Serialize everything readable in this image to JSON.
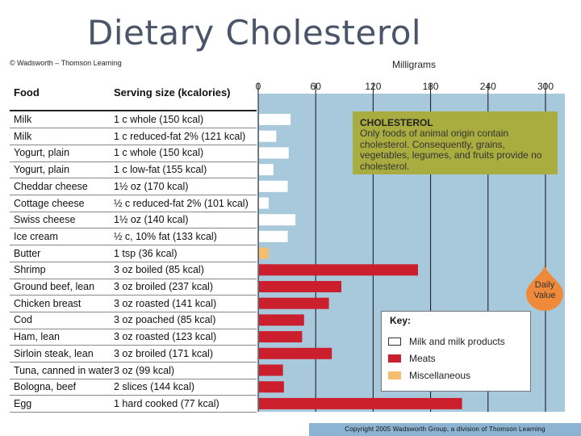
{
  "slide": {
    "title": "Dietary Cholesterol",
    "publisher_credit": "© Wadsworth – Thomson Learning",
    "copyright": "Copyright 2005 Wadsworth Group, a division of Thomson Learning"
  },
  "table": {
    "food_header": "Food",
    "serving_header": "Serving size (kcalories)",
    "rows": [
      {
        "food": "Milk",
        "serving": "1 c whole (150 kcal)"
      },
      {
        "food": "Milk",
        "serving": "1 c reduced-fat 2% (121 kcal)"
      },
      {
        "food": "Yogurt, plain",
        "serving": "1 c whole (150 kcal)"
      },
      {
        "food": "Yogurt, plain",
        "serving": "1 c low-fat (155 kcal)"
      },
      {
        "food": "Cheddar cheese",
        "serving": "1½ oz (170 kcal)"
      },
      {
        "food": "Cottage cheese",
        "serving": "½ c reduced-fat 2% (101 kcal)"
      },
      {
        "food": "Swiss cheese",
        "serving": "1½ oz (140 kcal)"
      },
      {
        "food": "Ice cream",
        "serving": "½ c, 10% fat (133 kcal)"
      },
      {
        "food": "Butter",
        "serving": "1 tsp (36 kcal)"
      },
      {
        "food": "Shrimp",
        "serving": "3 oz boiled (85 kcal)"
      },
      {
        "food": "Ground beef, lean",
        "serving": "3 oz broiled (237 kcal)"
      },
      {
        "food": "Chicken breast",
        "serving": "3 oz roasted (141 kcal)"
      },
      {
        "food": "Cod",
        "serving": "3 oz poached (85 kcal)"
      },
      {
        "food": "Ham, lean",
        "serving": "3 oz roasted (123 kcal)"
      },
      {
        "food": "Sirloin steak, lean",
        "serving": "3 oz broiled (171 kcal)"
      },
      {
        "food": "Tuna, canned in water",
        "serving": "3 oz (99 kcal)"
      },
      {
        "food": "Bologna, beef",
        "serving": "2 slices (144 kcal)"
      },
      {
        "food": "Egg",
        "serving": "1 hard cooked (77 kcal)"
      }
    ]
  },
  "info_box": {
    "title": "CHOLESTEROL",
    "text": "Only foods of animal origin contain cholesterol. Consequently, grains, vegetables, legumes, and fruits provide no cholesterol."
  },
  "key": {
    "title": "Key:",
    "items": [
      {
        "label": "Milk and milk products",
        "color": "#ffffff"
      },
      {
        "label": "Meats",
        "color": "#cc1f2e"
      },
      {
        "label": "Miscellaneous",
        "color": "#f5bd6e"
      }
    ]
  },
  "daily_value": {
    "line1": "Daily",
    "line2": "Value",
    "value": 300,
    "color": "#ef8a3a"
  },
  "chart_data": {
    "type": "bar",
    "orientation": "horizontal",
    "xlabel": "Milligrams",
    "xlim": [
      0,
      330
    ],
    "xticks": [
      0,
      60,
      120,
      180,
      240,
      300
    ],
    "xtick_labels": [
      "0",
      "60",
      "120",
      "180",
      "240",
      "300"
    ],
    "background": "#a8c8dc",
    "categories": [
      "Milk",
      "Milk",
      "Yogurt, plain",
      "Yogurt, plain",
      "Cheddar cheese",
      "Cottage cheese",
      "Swiss cheese",
      "Ice cream",
      "Butter",
      "Shrimp",
      "Ground beef, lean",
      "Chicken breast",
      "Cod",
      "Ham, lean",
      "Sirloin steak, lean",
      "Tuna, canned in water",
      "Bologna, beef",
      "Egg"
    ],
    "groups": [
      "Milk and milk products",
      "Milk and milk products",
      "Milk and milk products",
      "Milk and milk products",
      "Milk and milk products",
      "Milk and milk products",
      "Milk and milk products",
      "Milk and milk products",
      "Miscellaneous",
      "Meats",
      "Meats",
      "Meats",
      "Meats",
      "Meats",
      "Meats",
      "Meats",
      "Meats",
      "Meats"
    ],
    "values": [
      33,
      18,
      31,
      15,
      30,
      10,
      38,
      30,
      10,
      166,
      86,
      73,
      47,
      45,
      76,
      25,
      26,
      212
    ],
    "reference_line": {
      "label": "Daily Value",
      "value": 300
    }
  }
}
